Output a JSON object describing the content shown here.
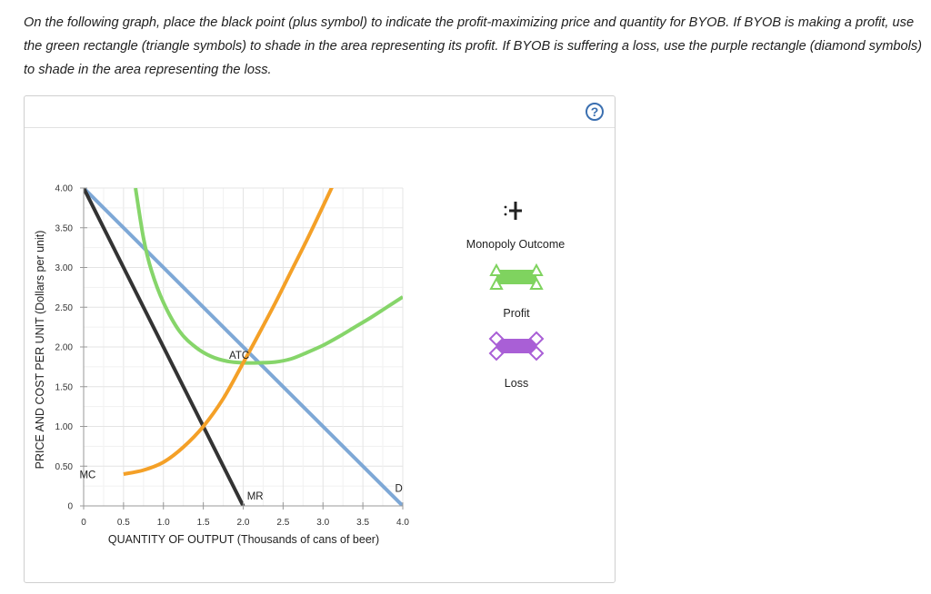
{
  "instructions": "On the following graph, place the black point (plus symbol) to indicate the profit-maximizing price and quantity for BYOB. If BYOB is making a profit, use the green rectangle (triangle symbols) to shade in the area representing its profit. If BYOB is suffering a loss, use the purple rectangle (diamond symbols) to shade in the area representing the loss.",
  "help_label": "?",
  "palette": {
    "monopoly_label": "Monopoly Outcome",
    "profit_label": "Profit",
    "loss_label": "Loss",
    "profit_color": "#7fd35f",
    "loss_color": "#a95fd6",
    "point_color": "#222222"
  },
  "chart_data": {
    "type": "line",
    "xlabel": "QUANTITY OF OUTPUT (Thousands of cans of beer)",
    "ylabel": "PRICE AND COST PER UNIT (Dollars per unit)",
    "xlim": [
      0,
      4
    ],
    "ylim": [
      0,
      4
    ],
    "x_ticks": [
      "0",
      "0.5",
      "1.0",
      "1.5",
      "2.0",
      "2.5",
      "3.0",
      "3.5",
      "4.0"
    ],
    "y_ticks": [
      "0",
      "0.50",
      "1.00",
      "1.50",
      "2.00",
      "2.50",
      "3.00",
      "3.50",
      "4.00"
    ],
    "x_tick_values": [
      0,
      0.5,
      1,
      1.5,
      2,
      2.5,
      3,
      3.5,
      4
    ],
    "y_tick_values": [
      0,
      0.5,
      1,
      1.5,
      2,
      2.5,
      3,
      3.5,
      4
    ],
    "grid": true,
    "series": [
      {
        "name": "D",
        "color": "#7ea8d6",
        "x": [
          0,
          4
        ],
        "y": [
          4,
          0
        ]
      },
      {
        "name": "MR",
        "color": "#333333",
        "x": [
          0,
          2
        ],
        "y": [
          4,
          0
        ]
      },
      {
        "name": "ATC",
        "color": "#86d56a",
        "x": [
          0.65,
          0.75,
          0.85,
          1.0,
          1.2,
          1.4,
          1.6,
          1.8,
          2.0,
          2.2,
          2.4,
          2.6,
          2.8,
          3.0,
          3.2,
          3.4,
          3.6,
          3.8,
          4.0
        ],
        "y": [
          4.0,
          3.37,
          2.96,
          2.56,
          2.2,
          2.0,
          1.88,
          1.82,
          1.8,
          1.8,
          1.81,
          1.85,
          1.93,
          2.02,
          2.13,
          2.25,
          2.37,
          2.5,
          2.63
        ]
      },
      {
        "name": "MC",
        "color": "#f4a027",
        "x": [
          0.5,
          0.75,
          1.0,
          1.25,
          1.5,
          1.75,
          2.0,
          2.2,
          2.4,
          2.6,
          2.8,
          3.0,
          3.2,
          3.33
        ],
        "y": [
          0.4,
          0.45,
          0.55,
          0.74,
          1.0,
          1.35,
          1.8,
          2.17,
          2.55,
          2.95,
          3.35,
          3.77,
          4.2,
          4.5
        ]
      }
    ],
    "curve_labels": [
      {
        "text": "ATC",
        "x": 1.95,
        "y": 1.85
      },
      {
        "text": "MC",
        "x": 0.05,
        "y": 0.35
      },
      {
        "text": "MR",
        "x": 2.15,
        "y": 0.08
      },
      {
        "text": "D",
        "x": 3.95,
        "y": 0.18
      }
    ]
  }
}
